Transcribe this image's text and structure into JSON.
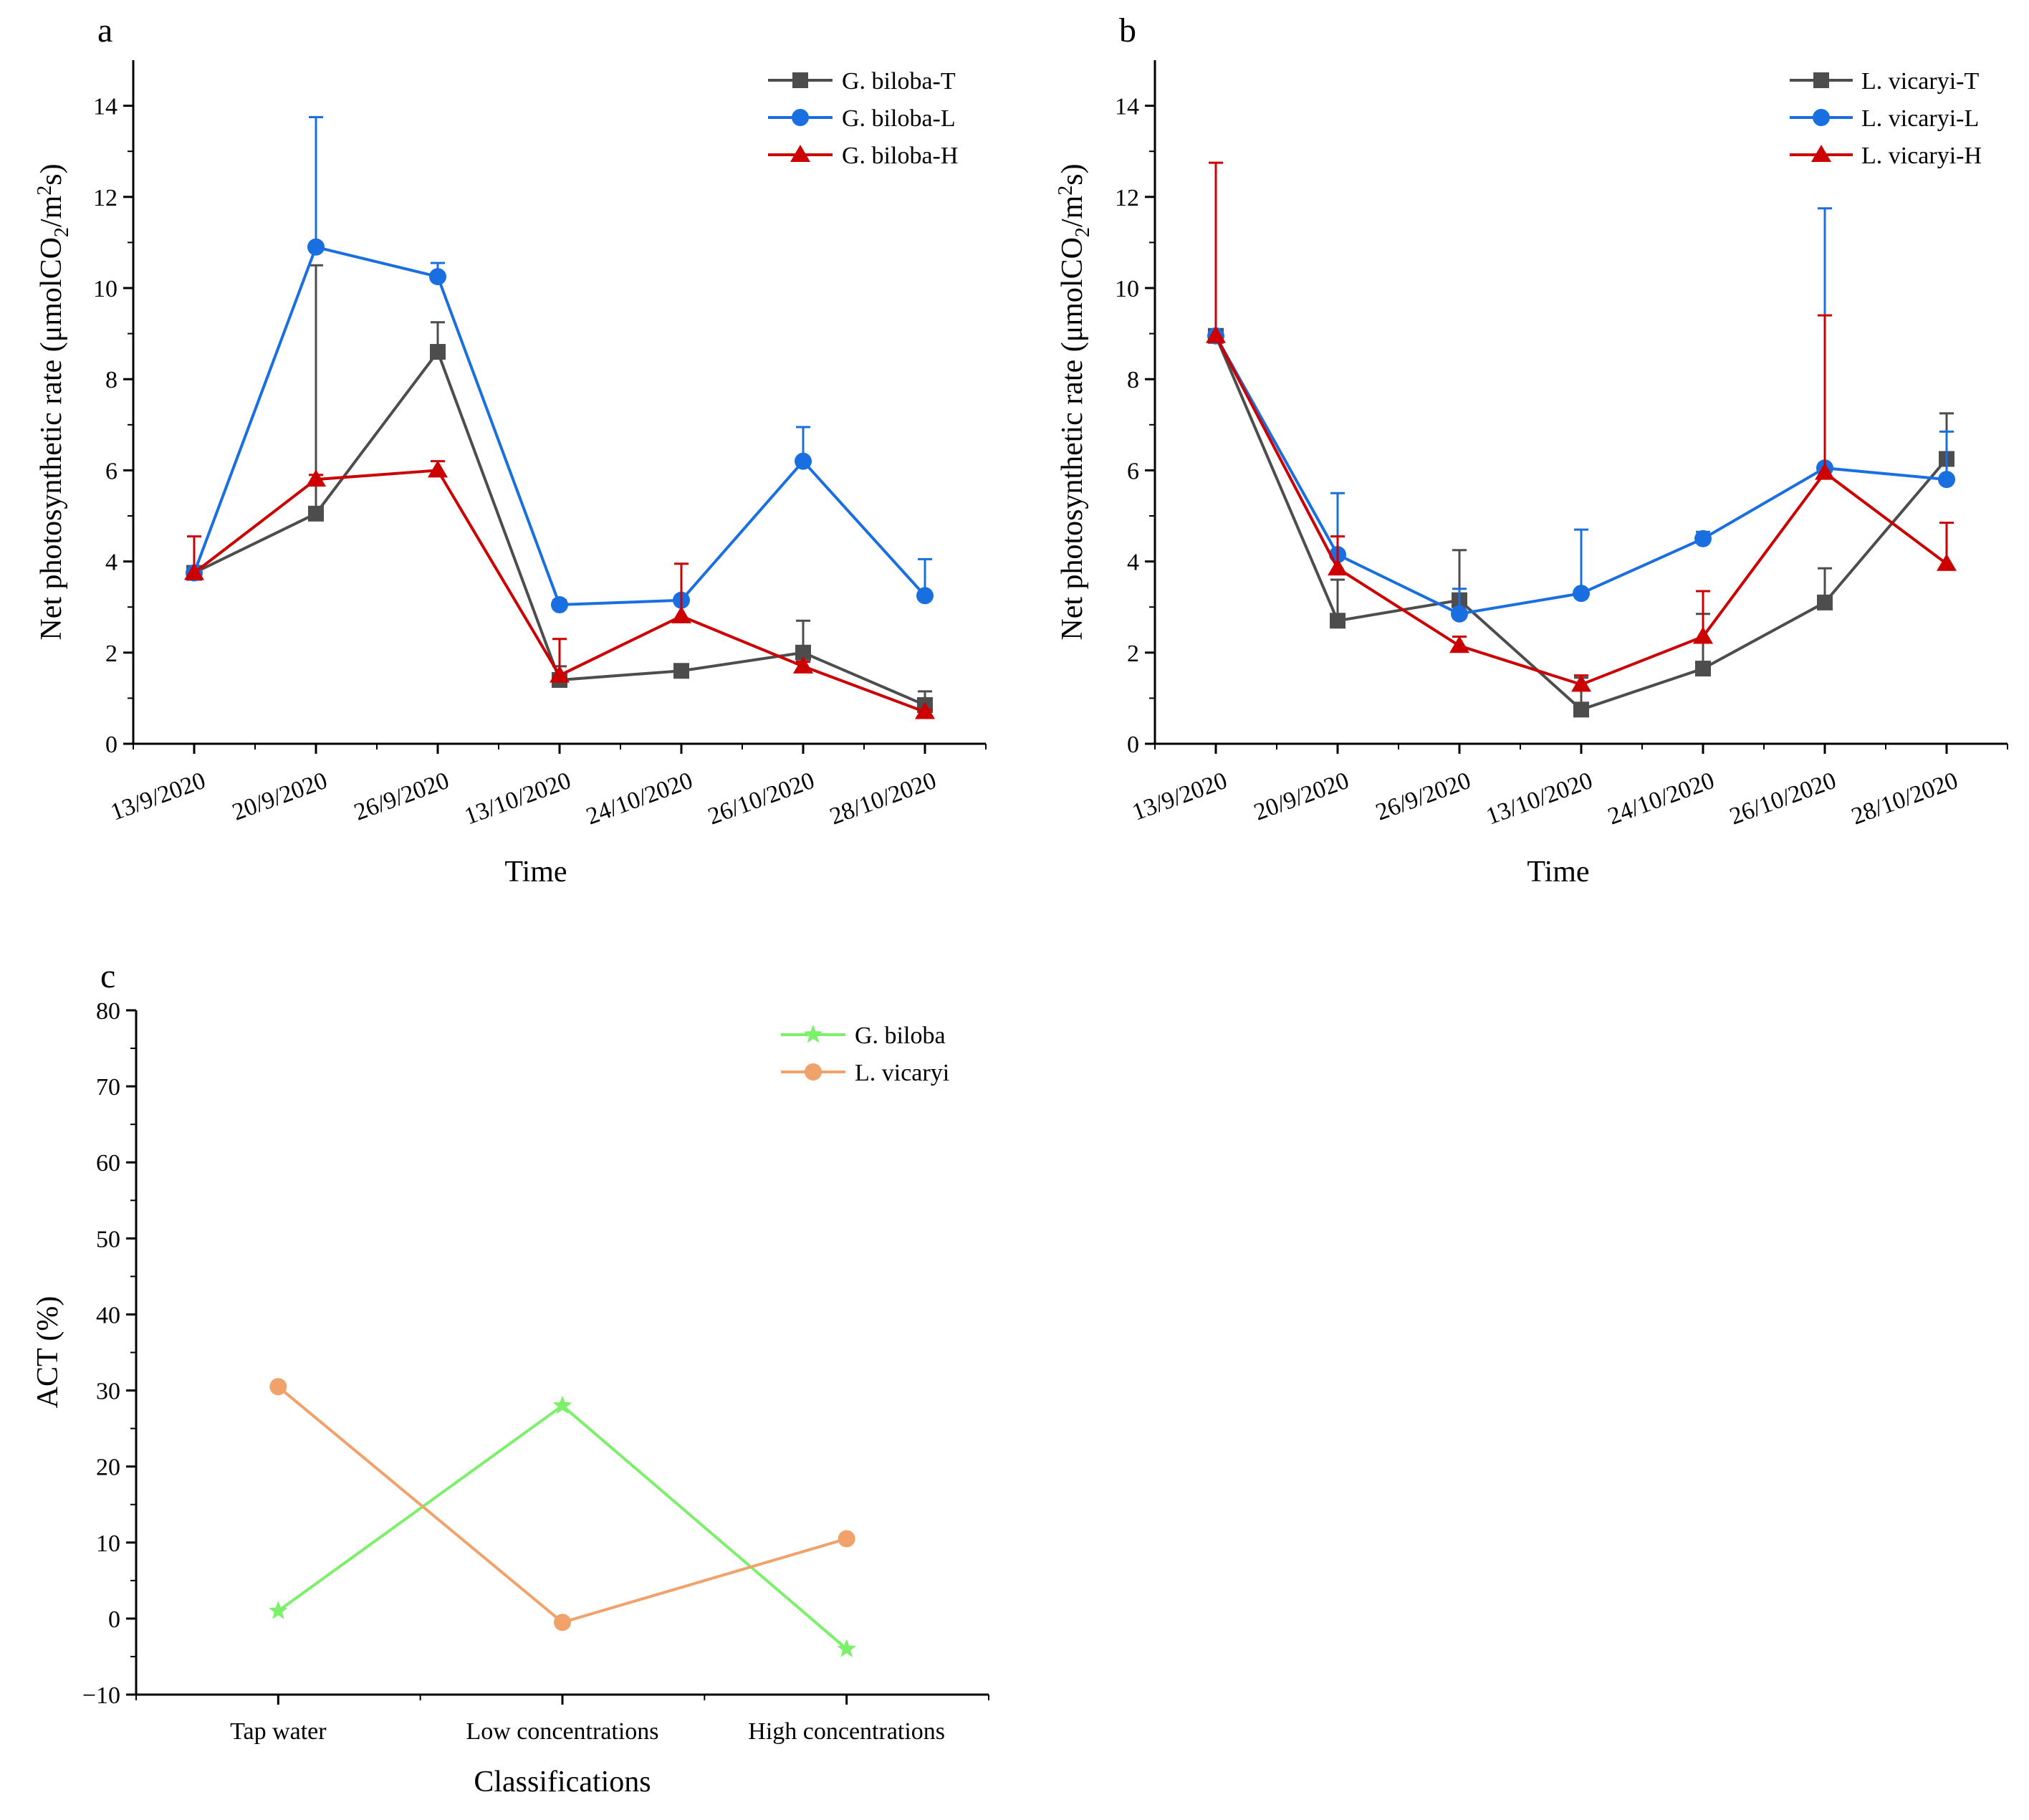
{
  "colors": {
    "T": "#4d4d4d",
    "L": "#1a6fe0",
    "H": "#cc0000",
    "gb": "#7cf06a",
    "lv": "#f0a26a",
    "axis": "#000000"
  },
  "chart_data": [
    {
      "panel": "a",
      "type": "line",
      "xlabel": "Time",
      "ylabel": "Net photosynthetic rate (μmolCO₂/m²s)",
      "ylabel_parts": {
        "pre": "Net photosynthetic rate (μmolCO",
        "sub": "2",
        "mid": "/m",
        "sup": "2",
        "post": "s)"
      },
      "ylim": [
        0,
        15
      ],
      "yticks": [
        0,
        2,
        4,
        6,
        8,
        10,
        12,
        14
      ],
      "categories": [
        "13/9/2020",
        "20/9/2020",
        "26/9/2020",
        "13/10/2020",
        "24/10/2020",
        "26/10/2020",
        "28/10/2020"
      ],
      "legend_position": "top-right",
      "series": [
        {
          "name": "G. biloba-T",
          "color_key": "T",
          "marker": "square",
          "values": [
            3.75,
            5.05,
            8.6,
            1.4,
            1.6,
            2.0,
            0.85
          ],
          "errors": [
            0,
            5.45,
            0.65,
            0.3,
            0.1,
            0.7,
            0.3
          ]
        },
        {
          "name": "G. biloba-L",
          "color_key": "L",
          "marker": "circle",
          "values": [
            3.75,
            10.9,
            10.25,
            3.05,
            3.15,
            6.2,
            3.25
          ],
          "errors": [
            0,
            2.85,
            0.3,
            0.1,
            0.05,
            0.75,
            0.8
          ]
        },
        {
          "name": "G. biloba-H",
          "color_key": "H",
          "marker": "triangle",
          "values": [
            3.75,
            5.8,
            6.0,
            1.5,
            2.8,
            1.7,
            0.7
          ],
          "errors": [
            0.8,
            0.1,
            0.2,
            0.8,
            1.15,
            0.1,
            0.05
          ]
        }
      ]
    },
    {
      "panel": "b",
      "type": "line",
      "xlabel": "Time",
      "ylabel": "Net photosynthetic rate (μmolCO₂/m²s)",
      "ylabel_parts": {
        "pre": "Net photosynthetic rate (μmolCO",
        "sub": "2",
        "mid": "/m",
        "sup": "2",
        "post": "s)"
      },
      "ylim": [
        0,
        15
      ],
      "yticks": [
        0,
        2,
        4,
        6,
        8,
        10,
        12,
        14
      ],
      "categories": [
        "13/9/2020",
        "20/9/2020",
        "26/9/2020",
        "13/10/2020",
        "24/10/2020",
        "26/10/2020",
        "28/10/2020"
      ],
      "legend_position": "top-right",
      "series": [
        {
          "name": "L. vicaryi-T",
          "color_key": "T",
          "marker": "square",
          "values": [
            8.95,
            2.7,
            3.15,
            0.75,
            1.65,
            3.1,
            6.25
          ],
          "errors": [
            0.05,
            0.9,
            1.1,
            0.7,
            1.2,
            0.75,
            1.0
          ]
        },
        {
          "name": "L. vicaryi-L",
          "color_key": "L",
          "marker": "circle",
          "values": [
            8.95,
            4.15,
            2.85,
            3.3,
            4.5,
            6.05,
            5.8
          ],
          "errors": [
            0.05,
            1.35,
            0.55,
            1.4,
            0.15,
            5.7,
            1.05
          ]
        },
        {
          "name": "L. vicaryi-H",
          "color_key": "H",
          "marker": "triangle",
          "values": [
            8.95,
            3.85,
            2.15,
            1.3,
            2.35,
            5.95,
            3.95
          ],
          "errors": [
            3.8,
            0.7,
            0.2,
            0.2,
            1.0,
            3.45,
            0.9
          ]
        }
      ]
    },
    {
      "panel": "c",
      "type": "line",
      "xlabel": "Classifications",
      "ylabel": "ACT (%)",
      "ylim": [
        -10,
        80
      ],
      "yticks": [
        -10,
        0,
        10,
        20,
        30,
        40,
        50,
        60,
        70,
        80
      ],
      "categories": [
        "Tap water",
        "Low concentrations",
        "High concentrations"
      ],
      "legend_position": "top-right",
      "series": [
        {
          "name": "G. biloba",
          "color_key": "gb",
          "marker": "star",
          "values": [
            1.0,
            28.0,
            -4.0
          ]
        },
        {
          "name": "L. vicaryi",
          "color_key": "lv",
          "marker": "circle",
          "values": [
            30.5,
            -0.5,
            10.5
          ]
        }
      ]
    }
  ]
}
